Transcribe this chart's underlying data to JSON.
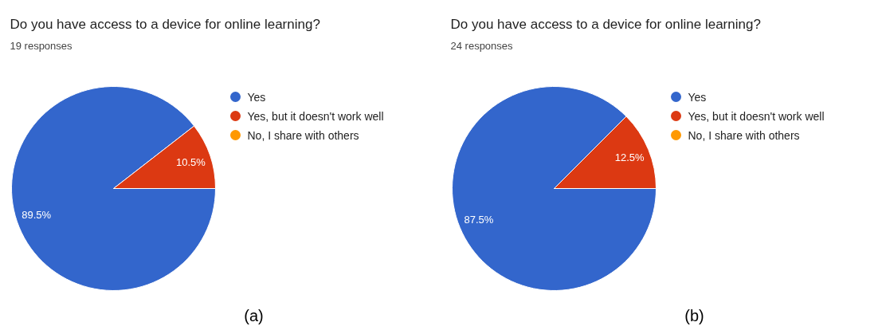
{
  "chart_data": [
    {
      "type": "pie",
      "title": "Do you have access to a device for online learning?",
      "subtitle": "19 responses",
      "categories": [
        "Yes",
        "Yes, but it doesn't work well",
        "No, I share with others"
      ],
      "values": [
        89.5,
        10.5,
        0
      ],
      "colors": [
        "#3366cc",
        "#dc3912",
        "#ff9900"
      ],
      "value_labels": [
        "89.5%",
        "10.5%",
        null
      ],
      "legend": "right",
      "annotations": [
        "(a)"
      ]
    },
    {
      "type": "pie",
      "title": "Do you have access to a device for online learning?",
      "subtitle": "24 responses",
      "categories": [
        "Yes",
        "Yes, but it doesn't work well",
        "No, I share with others"
      ],
      "values": [
        87.5,
        12.5,
        0
      ],
      "colors": [
        "#3366cc",
        "#dc3912",
        "#ff9900"
      ],
      "value_labels": [
        "87.5%",
        "12.5%",
        null
      ],
      "legend": "right",
      "annotations": [
        "(b)"
      ]
    }
  ]
}
